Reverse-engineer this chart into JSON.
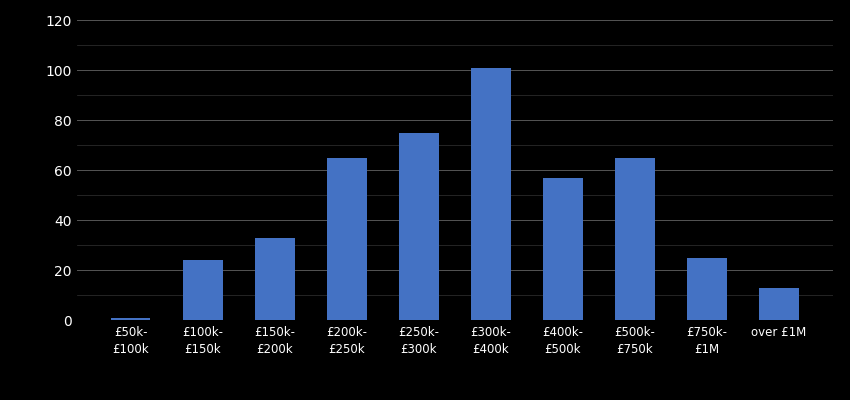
{
  "categories": [
    "£50k-\n£100k",
    "£100k-\n£150k",
    "£150k-\n£200k",
    "£200k-\n£250k",
    "£250k-\n£300k",
    "£300k-\n£400k",
    "£400k-\n£500k",
    "£500k-\n£750k",
    "£750k-\n£1M",
    "over £1M"
  ],
  "values": [
    1,
    24,
    33,
    65,
    75,
    101,
    57,
    65,
    25,
    13
  ],
  "bar_color": "#4472C4",
  "background_color": "#000000",
  "text_color": "#ffffff",
  "grid_color_major": "#555555",
  "grid_color_minor": "#333333",
  "ylim": [
    0,
    120
  ],
  "yticks_major": [
    0,
    20,
    40,
    60,
    80,
    100,
    120
  ],
  "yticks_minor": [
    10,
    30,
    50,
    70,
    90,
    110
  ],
  "bar_width": 0.55
}
